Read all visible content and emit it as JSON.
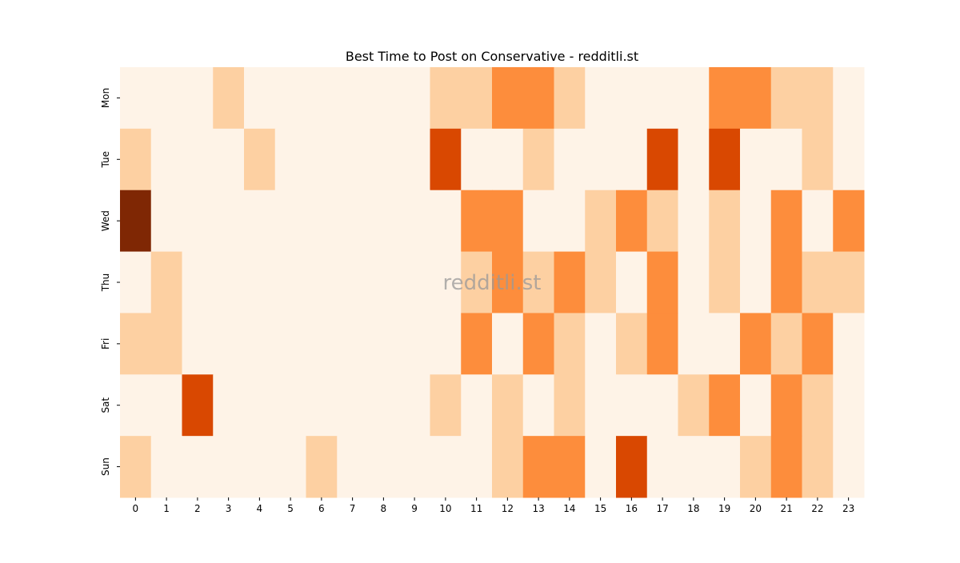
{
  "chart_data": {
    "type": "heatmap",
    "title": "Best Time to Post on Conservative - redditli.st",
    "watermark": "redditli.st",
    "x": [
      0,
      1,
      2,
      3,
      4,
      5,
      6,
      7,
      8,
      9,
      10,
      11,
      12,
      13,
      14,
      15,
      16,
      17,
      18,
      19,
      20,
      21,
      22,
      23
    ],
    "y_categories": [
      "Mon",
      "Tue",
      "Wed",
      "Thu",
      "Fri",
      "Sat",
      "Sun"
    ],
    "values": [
      [
        0,
        0,
        0,
        1,
        0,
        0,
        0,
        0,
        0,
        0,
        1,
        1,
        2,
        2,
        1,
        0,
        0,
        0,
        0,
        2,
        2,
        1,
        1,
        0
      ],
      [
        1,
        0,
        0,
        0,
        1,
        0,
        0,
        0,
        0,
        0,
        3,
        0,
        0,
        1,
        0,
        0,
        0,
        3,
        0,
        3,
        0,
        0,
        1,
        0
      ],
      [
        4,
        0,
        0,
        0,
        0,
        0,
        0,
        0,
        0,
        0,
        0,
        2,
        2,
        0,
        0,
        1,
        2,
        1,
        0,
        1,
        0,
        2,
        0,
        2
      ],
      [
        0,
        1,
        0,
        0,
        0,
        0,
        0,
        0,
        0,
        0,
        0,
        1,
        2,
        1,
        2,
        1,
        0,
        2,
        0,
        1,
        0,
        2,
        1,
        1
      ],
      [
        1,
        1,
        0,
        0,
        0,
        0,
        0,
        0,
        0,
        0,
        0,
        2,
        0,
        2,
        1,
        0,
        1,
        2,
        0,
        0,
        2,
        1,
        2,
        0
      ],
      [
        0,
        0,
        3,
        0,
        0,
        0,
        0,
        0,
        0,
        0,
        1,
        0,
        1,
        0,
        1,
        0,
        0,
        0,
        1,
        2,
        0,
        2,
        1,
        0
      ],
      [
        1,
        0,
        0,
        0,
        0,
        0,
        1,
        0,
        0,
        0,
        0,
        0,
        1,
        2,
        2,
        0,
        3,
        0,
        0,
        0,
        1,
        2,
        1,
        0
      ]
    ],
    "vlim": [
      0,
      4
    ],
    "colors": [
      "#fef3e7",
      "#fdd0a2",
      "#fd8d3c",
      "#d94801",
      "#7f2704"
    ]
  }
}
